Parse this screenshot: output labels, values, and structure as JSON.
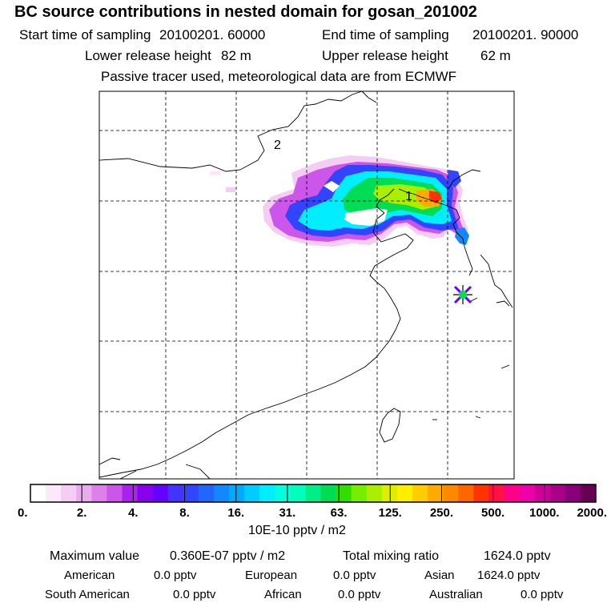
{
  "title": "BC  source contributions in nested domain for gosan_201002",
  "header": {
    "start_label": "Start time of sampling",
    "start_value": "20100201. 60000",
    "end_label": "End time of sampling",
    "end_value": "20100201. 90000",
    "lower_label": "Lower release height",
    "lower_value": "82 m",
    "upper_label": "Upper release height",
    "upper_value": "62 m",
    "note": "Passive tracer used, meteorological data are from ECMWF"
  },
  "map": {
    "markers": [
      {
        "label": "1"
      },
      {
        "label": "2"
      }
    ],
    "receptor": "gosan-marker-icon"
  },
  "colorbar": {
    "labels": [
      "0.",
      "2.",
      "4.",
      "8.",
      "16.",
      "31.",
      "63.",
      "125.",
      "250.",
      "500.",
      "1000.",
      "2000."
    ],
    "colors": [
      "#ffffff",
      "#fbe8fb",
      "#f4ccf4",
      "#eaaaee",
      "#dd80ea",
      "#cc55ea",
      "#aa22ee",
      "#8800ee",
      "#6600ff",
      "#4433ff",
      "#3344ff",
      "#2266ff",
      "#1188ff",
      "#00aaff",
      "#00ccff",
      "#00eeff",
      "#00ffdd",
      "#00ffbb",
      "#00ee88",
      "#00dd55",
      "#33dd00",
      "#77ee00",
      "#aaee00",
      "#ddee00",
      "#ffee00",
      "#ffcc00",
      "#ffaa00",
      "#ff8800",
      "#ff6600",
      "#ff3300",
      "#ff1144",
      "#ff0088",
      "#ee00aa",
      "#cc0099",
      "#aa0088",
      "#880077",
      "#660055"
    ],
    "unit": "10E-10 pptv / m2"
  },
  "footer": {
    "max_label": "Maximum value",
    "max_value": "0.360E-07 pptv / m2",
    "total_label": "Total mixing ratio",
    "total_value": "1624.0 pptv",
    "regions": [
      {
        "name": "American",
        "value": "0.0 pptv"
      },
      {
        "name": "European",
        "value": "0.0 pptv"
      },
      {
        "name": "Asian",
        "value": "1624.0 pptv"
      },
      {
        "name": "South American",
        "value": "0.0 pptv"
      },
      {
        "name": "African",
        "value": "0.0 pptv"
      },
      {
        "name": "Australian",
        "value": "0.0 pptv"
      }
    ]
  }
}
